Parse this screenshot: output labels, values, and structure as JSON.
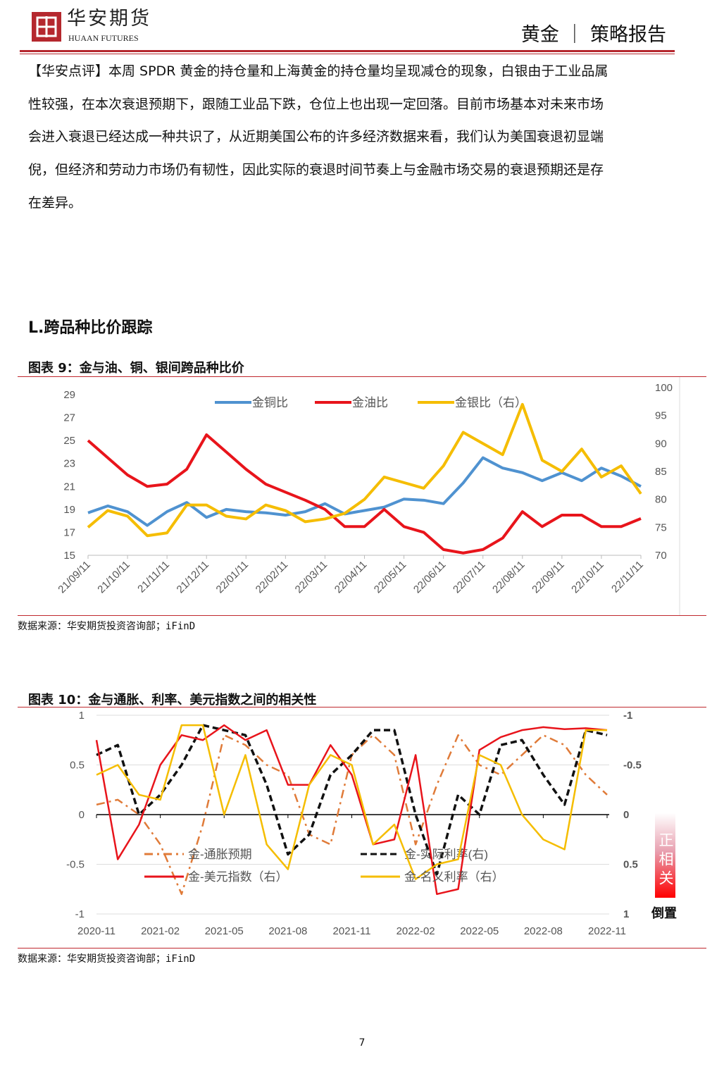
{
  "header": {
    "logo_cn": "华安期货",
    "logo_en": "HUAAN FUTURES",
    "right": "黄金 ｜ 策略报告",
    "accent": "#b5282e"
  },
  "body_lines": [
    "【华安点评】本周 SPDR 黄金的持仓量和上海黄金的持仓量均呈现减仓的现象，白银由于工业品属",
    "性较强，在本次衰退预期下，跟随工业品下跌，仓位上也出现一定回落。目前市场基本对未来市场",
    "会进入衰退已经达成一种共识了，从近期美国公布的许多经济数据来看，我们认为美国衰退初显端",
    "倪，但经济和劳动力市场仍有韧性，因此实际的衰退时间节奏上与金融市场交易的衰退预期还是存",
    "在差异。"
  ],
  "section_title": "L.跨品种比价跟踪",
  "figure9": {
    "title": "图表 9：金与油、铜、银间跨品种比价",
    "source": "数据来源：华安期货投资咨询部；iFinD"
  },
  "figure10": {
    "title": "图表 10：金与通胀、利率、美元指数之间的相关性",
    "source": "数据来源：华安期货投资咨询部；iFinD",
    "side_label_top": "正相关",
    "side_label_bottom": "倒置"
  },
  "page_number": "7",
  "chart_data": [
    {
      "type": "line",
      "ylim": [
        15,
        29
      ],
      "y2lim": [
        70,
        100
      ],
      "yticks": [
        "15",
        "17",
        "19",
        "21",
        "23",
        "25",
        "27",
        "29"
      ],
      "y2ticks": [
        "70",
        "75",
        "80",
        "85",
        "90",
        "95",
        "100"
      ],
      "xtick_labels": [
        "21/09/11",
        "21/10/11",
        "21/11/11",
        "21/12/11",
        "22/01/11",
        "22/02/11",
        "22/03/11",
        "22/04/11",
        "22/05/11",
        "22/06/11",
        "22/07/11",
        "22/08/11",
        "22/09/11",
        "22/10/11",
        "22/11/11"
      ],
      "legend_position": "top",
      "grid": false,
      "series": [
        {
          "name": "金铜比",
          "axis": "left",
          "color": "#4f92d0",
          "values": [
            18.7,
            19.3,
            18.8,
            17.6,
            18.8,
            19.6,
            18.3,
            19.0,
            18.8,
            18.7,
            18.5,
            18.8,
            19.5,
            18.6,
            18.9,
            19.2,
            19.9,
            19.8,
            19.5,
            21.3,
            23.5,
            22.6,
            22.2,
            21.5,
            22.2,
            21.5,
            22.6,
            21.9,
            21.0
          ]
        },
        {
          "name": "金油比",
          "axis": "left",
          "color": "#e8141b",
          "values": [
            25,
            23.5,
            22,
            21,
            21.2,
            22.5,
            25.5,
            24,
            22.5,
            21.2,
            20.5,
            19.8,
            19,
            17.5,
            17.5,
            19,
            17.5,
            17,
            15.5,
            15.2,
            15.5,
            16.5,
            18.8,
            17.5,
            18.5,
            18.5,
            17.5,
            17.5,
            18.2
          ]
        },
        {
          "name": "金银比（右）",
          "axis": "right",
          "color": "#f5bd00",
          "values": [
            75,
            78,
            77,
            73.5,
            74,
            79,
            79,
            77,
            76.5,
            79,
            78,
            76,
            76.5,
            77.5,
            80,
            84,
            83,
            82,
            86,
            92,
            90,
            88,
            97,
            87,
            85,
            89,
            84,
            86,
            81
          ]
        }
      ]
    },
    {
      "type": "line",
      "ylim": [
        -1,
        1
      ],
      "y2lim": [
        -1,
        1
      ],
      "y2_reversed": true,
      "yticks": [
        "1",
        "0.5",
        "0",
        "-0.5",
        "-1"
      ],
      "y2ticks": [
        "-1",
        "-0.5",
        "0",
        "0.5",
        "1"
      ],
      "xtick_labels": [
        "2020-11",
        "2021-02",
        "2021-05",
        "2021-08",
        "2021-11",
        "2022-02",
        "2022-05",
        "2022-08",
        "2022-11"
      ],
      "legend_position": "bottom-inside",
      "grid": true,
      "series": [
        {
          "name": "金-通胀预期",
          "axis": "left",
          "color": "#e07b39",
          "dash": "dashdot",
          "values": [
            0.1,
            0.15,
            0.0,
            -0.3,
            -0.8,
            -0.1,
            0.8,
            0.7,
            0.5,
            0.4,
            -0.2,
            -0.3,
            0.6,
            0.8,
            0.6,
            -0.3,
            0.3,
            0.8,
            0.5,
            0.4,
            0.6,
            0.8,
            0.7,
            0.4,
            0.2
          ]
        },
        {
          "name": "金-实际利率(右)",
          "axis": "right",
          "color": "#111111",
          "dash": "dash",
          "values": [
            -0.6,
            -0.7,
            0.0,
            -0.2,
            -0.5,
            -0.9,
            -0.85,
            -0.8,
            -0.3,
            0.4,
            0.2,
            -0.4,
            -0.6,
            -0.85,
            -0.85,
            0.0,
            0.6,
            -0.2,
            0.0,
            -0.7,
            -0.75,
            -0.4,
            -0.1,
            -0.85,
            -0.8
          ]
        },
        {
          "name": "金-美元指数（右）",
          "axis": "right",
          "color": "#e8141b",
          "dash": "solid",
          "values": [
            -0.75,
            0.45,
            0.1,
            -0.5,
            -0.8,
            -0.75,
            -0.9,
            -0.75,
            -0.85,
            -0.3,
            -0.3,
            -0.7,
            -0.4,
            0.3,
            0.25,
            -0.6,
            0.8,
            0.75,
            -0.65,
            -0.78,
            -0.85,
            -0.88,
            -0.86,
            -0.87,
            -0.85
          ]
        },
        {
          "name": "金-名义利率（右）",
          "axis": "right",
          "color": "#f5bd00",
          "dash": "solid",
          "values": [
            -0.4,
            -0.5,
            -0.2,
            -0.15,
            -0.9,
            -0.9,
            0.0,
            -0.6,
            0.3,
            0.55,
            -0.3,
            -0.6,
            -0.5,
            0.3,
            0.1,
            0.65,
            0.5,
            0.45,
            -0.6,
            -0.5,
            0.0,
            0.25,
            0.35,
            -0.85,
            -0.85
          ]
        }
      ]
    }
  ]
}
